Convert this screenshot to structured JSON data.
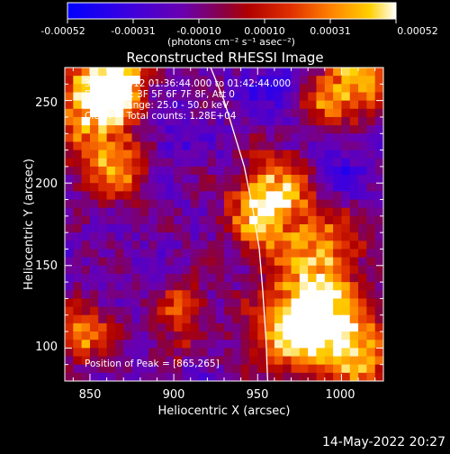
{
  "colorbar": {
    "ticks": [
      "-0.00052",
      "-0.00031",
      "-0.00010",
      "0.00010",
      "0.00031",
      "0.00052"
    ],
    "units": "(photons cm⁻² s⁻¹ asec⁻²)"
  },
  "title": "Reconstructed RHESSI Image",
  "info": {
    "line1": "30-Sep-2012 01:36:44.000 to 01:42:44.000",
    "line2": "Detectors: 3F 5F 6F 7F 8F, Att 0",
    "line3": "Energy Range: 25.0 - 50.0 keV",
    "line4": "Clean     Total counts: 1.28E+04"
  },
  "peak": "Position of Peak = [865,265]",
  "footer_date": "14-May-2022 20:27",
  "chart_data": {
    "type": "heatmap",
    "title": "Reconstructed RHESSI Image",
    "xlabel": "Heliocentric X (arcsec)",
    "ylabel": "Heliocentric Y (arcsec)",
    "xlim": [
      835,
      1025
    ],
    "ylim": [
      80,
      270
    ],
    "x_ticks": [
      "850",
      "900",
      "950",
      "1000"
    ],
    "y_ticks": [
      "100",
      "150",
      "200",
      "250"
    ],
    "clim": [
      -0.00052,
      0.00052
    ],
    "colormap": [
      "#0000ff",
      "#5a00c8",
      "#7a00a0",
      "#a00000",
      "#e03000",
      "#ff8000",
      "#ffc800",
      "#ffffff"
    ],
    "limb_curve": {
      "x": [
        922,
        930,
        936,
        942,
        947,
        951,
        953,
        955,
        956
      ],
      "y": [
        270,
        250,
        230,
        210,
        185,
        160,
        135,
        105,
        80
      ]
    },
    "peak_position": [
      865,
      265
    ],
    "hot_regions": [
      {
        "x": 865,
        "y": 262,
        "intensity": 1.0,
        "spread": 12
      },
      {
        "x": 852,
        "y": 245,
        "intensity": 0.85,
        "spread": 18
      },
      {
        "x": 1010,
        "y": 262,
        "intensity": 0.8,
        "spread": 14
      },
      {
        "x": 990,
        "y": 248,
        "intensity": 0.55,
        "spread": 10
      },
      {
        "x": 865,
        "y": 208,
        "intensity": 0.65,
        "spread": 14
      },
      {
        "x": 960,
        "y": 198,
        "intensity": 0.7,
        "spread": 14
      },
      {
        "x": 950,
        "y": 178,
        "intensity": 0.65,
        "spread": 14
      },
      {
        "x": 985,
        "y": 160,
        "intensity": 0.75,
        "spread": 18
      },
      {
        "x": 990,
        "y": 120,
        "intensity": 0.95,
        "spread": 16
      },
      {
        "x": 970,
        "y": 110,
        "intensity": 0.75,
        "spread": 18
      },
      {
        "x": 1010,
        "y": 95,
        "intensity": 0.75,
        "spread": 14
      },
      {
        "x": 845,
        "y": 110,
        "intensity": 0.7,
        "spread": 12
      },
      {
        "x": 905,
        "y": 125,
        "intensity": 0.6,
        "spread": 10
      },
      {
        "x": 900,
        "y": 95,
        "intensity": 0.5,
        "spread": 10
      }
    ],
    "cold_regions": [
      {
        "x": 905,
        "y": 90,
        "intensity": 0.7,
        "spread": 10
      },
      {
        "x": 960,
        "y": 260,
        "intensity": 0.5,
        "spread": 14
      },
      {
        "x": 895,
        "y": 230,
        "intensity": 0.5,
        "spread": 14
      },
      {
        "x": 1000,
        "y": 205,
        "intensity": 0.5,
        "spread": 12
      }
    ]
  }
}
